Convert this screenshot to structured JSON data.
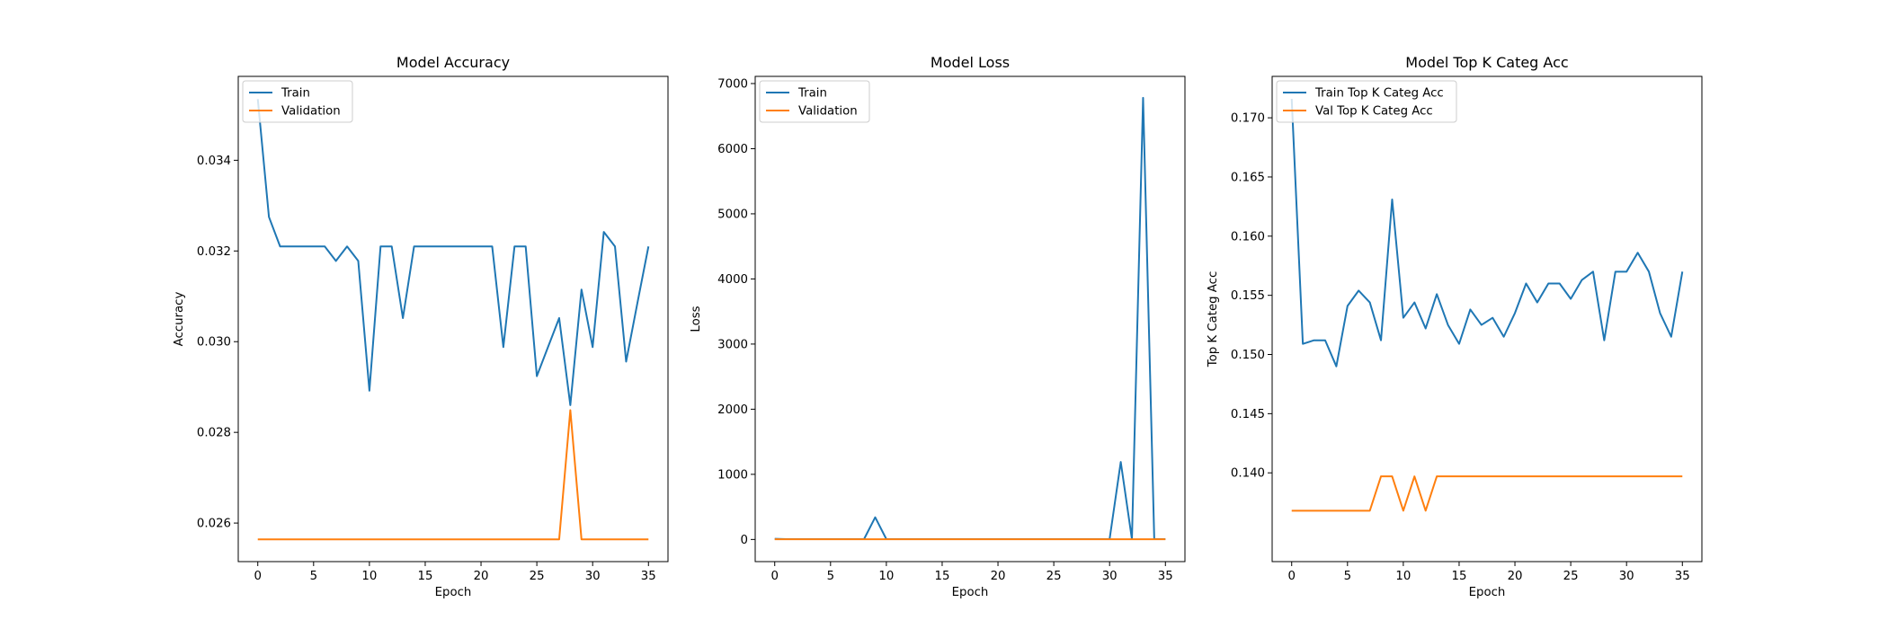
{
  "chart_data": [
    {
      "type": "line",
      "title": "Model Accuracy",
      "xlabel": "Epoch",
      "ylabel": "Accuracy",
      "xlim": [
        -1.75,
        36.75
      ],
      "ylim": [
        0.02515,
        0.03585
      ],
      "xticks": [
        0,
        5,
        10,
        15,
        20,
        25,
        30,
        35
      ],
      "xtick_labels": [
        "0",
        "5",
        "10",
        "15",
        "20",
        "25",
        "30",
        "35"
      ],
      "yticks": [
        0.026,
        0.028,
        0.03,
        0.032,
        0.034
      ],
      "ytick_labels": [
        "0.026",
        "0.028",
        "0.030",
        "0.032",
        "0.034"
      ],
      "legend_position": "upper left",
      "grid": false,
      "x": [
        0,
        1,
        2,
        3,
        4,
        5,
        6,
        7,
        8,
        9,
        10,
        11,
        12,
        13,
        14,
        15,
        16,
        17,
        18,
        19,
        20,
        21,
        22,
        23,
        24,
        25,
        26,
        27,
        28,
        29,
        30,
        31,
        32,
        33,
        34,
        35
      ],
      "series": [
        {
          "name": "Train",
          "color": "#1f77b4",
          "values": [
            0.03535,
            0.03275,
            0.0321,
            0.0321,
            0.0321,
            0.0321,
            0.0321,
            0.03178,
            0.0321,
            0.03178,
            0.02892,
            0.0321,
            0.0321,
            0.03052,
            0.0321,
            0.0321,
            0.0321,
            0.0321,
            0.0321,
            0.0321,
            0.0321,
            0.0321,
            0.02988,
            0.0321,
            0.0321,
            0.02924,
            0.02988,
            0.03052,
            0.0286,
            0.03115,
            0.02988,
            0.03242,
            0.0321,
            0.02956,
            0.03084,
            0.0321
          ]
        },
        {
          "name": "Validation",
          "color": "#ff7f0e",
          "values": [
            0.02564,
            0.02564,
            0.02564,
            0.02564,
            0.02564,
            0.02564,
            0.02564,
            0.02564,
            0.02564,
            0.02564,
            0.02564,
            0.02564,
            0.02564,
            0.02564,
            0.02564,
            0.02564,
            0.02564,
            0.02564,
            0.02564,
            0.02564,
            0.02564,
            0.02564,
            0.02564,
            0.02564,
            0.02564,
            0.02564,
            0.02564,
            0.02564,
            0.02849,
            0.02564,
            0.02564,
            0.02564,
            0.02564,
            0.02564,
            0.02564,
            0.02564
          ]
        }
      ]
    },
    {
      "type": "line",
      "title": "Model Loss",
      "xlabel": "Epoch",
      "ylabel": "Loss",
      "xlim": [
        -1.75,
        36.75
      ],
      "ylim": [
        -340,
        7110
      ],
      "xticks": [
        0,
        5,
        10,
        15,
        20,
        25,
        30,
        35
      ],
      "xtick_labels": [
        "0",
        "5",
        "10",
        "15",
        "20",
        "25",
        "30",
        "35"
      ],
      "yticks": [
        0,
        1000,
        2000,
        3000,
        4000,
        5000,
        6000,
        7000
      ],
      "ytick_labels": [
        "0",
        "1000",
        "2000",
        "3000",
        "4000",
        "5000",
        "6000",
        "7000"
      ],
      "legend_position": "upper left",
      "grid": false,
      "x": [
        0,
        1,
        2,
        3,
        4,
        5,
        6,
        7,
        8,
        9,
        10,
        11,
        12,
        13,
        14,
        15,
        16,
        17,
        18,
        19,
        20,
        21,
        22,
        23,
        24,
        25,
        26,
        27,
        28,
        29,
        30,
        31,
        32,
        33,
        34,
        35
      ],
      "series": [
        {
          "name": "Train",
          "color": "#1f77b4",
          "values": [
            10,
            5,
            5,
            5,
            5,
            5,
            5,
            5,
            5,
            340,
            5,
            5,
            5,
            5,
            5,
            5,
            5,
            5,
            5,
            5,
            5,
            5,
            5,
            5,
            5,
            5,
            5,
            5,
            5,
            5,
            5,
            1190,
            5,
            6780,
            5,
            5
          ]
        },
        {
          "name": "Validation",
          "color": "#ff7f0e",
          "values": [
            3,
            3,
            3,
            3,
            3,
            3,
            3,
            3,
            3,
            3,
            3,
            3,
            3,
            3,
            3,
            3,
            3,
            3,
            3,
            3,
            3,
            3,
            3,
            3,
            3,
            3,
            3,
            3,
            3,
            3,
            3,
            3,
            3,
            3,
            3,
            3
          ]
        }
      ]
    },
    {
      "type": "line",
      "title": "Model Top K Categ Acc",
      "xlabel": "Epoch",
      "ylabel": "Top K Categ Acc",
      "xlim": [
        -1.75,
        36.75
      ],
      "ylim": [
        0.1325,
        0.1735
      ],
      "xticks": [
        0,
        5,
        10,
        15,
        20,
        25,
        30,
        35
      ],
      "xtick_labels": [
        "0",
        "5",
        "10",
        "15",
        "20",
        "25",
        "30",
        "35"
      ],
      "yticks": [
        0.14,
        0.145,
        0.15,
        0.155,
        0.16,
        0.165,
        0.17
      ],
      "ytick_labels": [
        "0.140",
        "0.145",
        "0.150",
        "0.155",
        "0.160",
        "0.165",
        "0.170"
      ],
      "legend_position": "upper left",
      "grid": false,
      "x": [
        0,
        1,
        2,
        3,
        4,
        5,
        6,
        7,
        8,
        9,
        10,
        11,
        12,
        13,
        14,
        15,
        16,
        17,
        18,
        19,
        20,
        21,
        22,
        23,
        24,
        25,
        26,
        27,
        28,
        29,
        30,
        31,
        32,
        33,
        34,
        35
      ],
      "series": [
        {
          "name": "Train Top K Categ Acc",
          "color": "#1f77b4",
          "values": [
            0.1716,
            0.1509,
            0.1512,
            0.1512,
            0.149,
            0.1541,
            0.1554,
            0.1544,
            0.1512,
            0.1631,
            0.1531,
            0.1544,
            0.1522,
            0.1551,
            0.1525,
            0.1509,
            0.1538,
            0.1525,
            0.1531,
            0.1515,
            0.1535,
            0.156,
            0.1544,
            0.156,
            0.156,
            0.1547,
            0.1563,
            0.157,
            0.1512,
            0.157,
            0.157,
            0.1586,
            0.157,
            0.1535,
            0.1515,
            0.157
          ]
        },
        {
          "name": "Val Top K Categ Acc",
          "color": "#ff7f0e",
          "values": [
            0.1368,
            0.1368,
            0.1368,
            0.1368,
            0.1368,
            0.1368,
            0.1368,
            0.1368,
            0.1397,
            0.1397,
            0.1368,
            0.1397,
            0.1368,
            0.1397,
            0.1397,
            0.1397,
            0.1397,
            0.1397,
            0.1397,
            0.1397,
            0.1397,
            0.1397,
            0.1397,
            0.1397,
            0.1397,
            0.1397,
            0.1397,
            0.1397,
            0.1397,
            0.1397,
            0.1397,
            0.1397,
            0.1397,
            0.1397,
            0.1397,
            0.1397
          ]
        }
      ]
    }
  ]
}
